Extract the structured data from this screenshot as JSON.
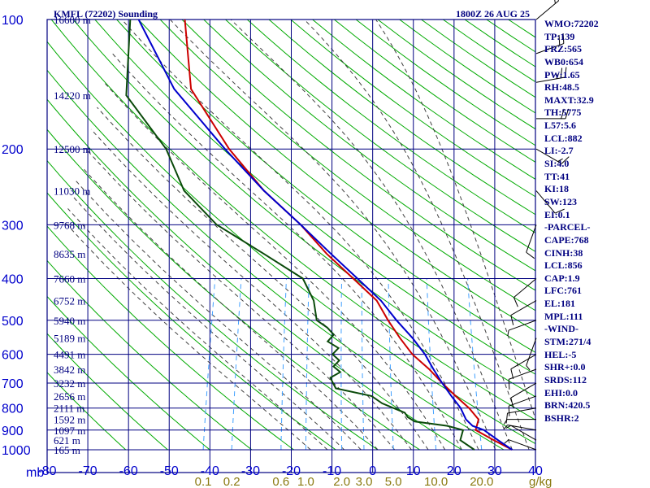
{
  "header": {
    "station": "KMFL (72202) Sounding",
    "time": "1800Z 26 AUG 25"
  },
  "colors": {
    "frame": "#000080",
    "temperature": "#cc0000",
    "dewpoint": "#0a4a0a",
    "parcel": "#0000cc",
    "dry_adiabat": "#00aa00",
    "moist_adiabat": "#404040",
    "mixing_ratio": "#40a0ff",
    "wind": "#000000"
  },
  "indices": [
    "WMO:72202",
    "TP:139",
    "FRZ:565",
    "WB0:654",
    "PW:1.65",
    "RH:48.5",
    "MAXT:32.9",
    "TH:5775",
    "L57:5.6",
    "LCL:882",
    "LI:-2.7",
    "SI:4.0",
    "TT:41",
    "KI:18",
    "SW:123",
    "EI:0.1",
    "-PARCEL-",
    "CAPE:768",
    "CINH:38",
    "LCL:856",
    "CAP:1.9",
    "LFC:761",
    "EL:181",
    "MPL:111",
    "-WIND-",
    "STM:271/4",
    "HEL:-5",
    "SHR+:0.0",
    "SRDS:112",
    "EHI:0.0",
    "BRN:420.5",
    "BSHR:2"
  ],
  "chart_data": {
    "type": "line",
    "subtype": "skew-T log-P",
    "pressure_axis_label": "mb",
    "pressure_levels": [
      100,
      200,
      300,
      400,
      500,
      600,
      700,
      800,
      900,
      1000
    ],
    "pressure_tick_labels": [
      "100",
      "200",
      "300",
      "400",
      "500",
      "600",
      "700",
      "800",
      "900",
      "1000"
    ],
    "temperature_ticks": [
      -80,
      -70,
      -60,
      -50,
      -40,
      -30,
      -20,
      -10,
      0,
      10,
      20,
      30,
      40
    ],
    "temperature_tick_labels": [
      "-80",
      "-70",
      "-60",
      "-50",
      "-40",
      "-30",
      "-20",
      "-10",
      "0",
      "10",
      "20",
      "30",
      "40"
    ],
    "mixing_ratio_label": "g/kg",
    "mixing_ratio_ticks": [
      0.1,
      0.2,
      0.6,
      1.0,
      2.0,
      3.0,
      5.0,
      10.0,
      20.0
    ],
    "mixing_ratio_tick_labels": [
      "0.1",
      "0.2",
      "0.6",
      "1.0",
      "2.0",
      "3.0",
      "5.0",
      "10.0",
      "20.0"
    ],
    "height_labels": [
      {
        "p": 100,
        "text": "16600 m"
      },
      {
        "p": 150,
        "text": "14220 m"
      },
      {
        "p": 200,
        "text": "12500 m"
      },
      {
        "p": 250,
        "text": "11030 m"
      },
      {
        "p": 300,
        "text": "9768 m"
      },
      {
        "p": 350,
        "text": "8635 m"
      },
      {
        "p": 400,
        "text": "7660 m"
      },
      {
        "p": 450,
        "text": "6752 m"
      },
      {
        "p": 500,
        "text": "5940 m"
      },
      {
        "p": 550,
        "text": "5189 m"
      },
      {
        "p": 600,
        "text": "4491 m"
      },
      {
        "p": 650,
        "text": "3842 m"
      },
      {
        "p": 700,
        "text": "3232 m"
      },
      {
        "p": 750,
        "text": "2656 m"
      },
      {
        "p": 800,
        "text": "2111 m"
      },
      {
        "p": 850,
        "text": "1592 m"
      },
      {
        "p": 900,
        "text": "1097 m"
      },
      {
        "p": 950,
        "text": "621 m"
      },
      {
        "p": 1000,
        "text": "165 m"
      }
    ],
    "series": [
      {
        "key": "temperature",
        "points": [
          [
            100,
            -74
          ],
          [
            145,
            -68
          ],
          [
            200,
            -55
          ],
          [
            250,
            -44
          ],
          [
            300,
            -33
          ],
          [
            350,
            -25
          ],
          [
            400,
            -17
          ],
          [
            450,
            -10
          ],
          [
            500,
            -6
          ],
          [
            550,
            -2
          ],
          [
            600,
            2
          ],
          [
            650,
            7
          ],
          [
            700,
            11
          ],
          [
            750,
            15
          ],
          [
            800,
            19
          ],
          [
            850,
            22
          ],
          [
            900,
            22
          ],
          [
            950,
            27
          ],
          [
            1000,
            32
          ]
        ]
      },
      {
        "key": "dewpoint",
        "points": [
          [
            100,
            -87
          ],
          [
            150,
            -83
          ],
          [
            200,
            -70
          ],
          [
            250,
            -63
          ],
          [
            300,
            -53
          ],
          [
            350,
            -40
          ],
          [
            400,
            -29
          ],
          [
            450,
            -25
          ],
          [
            500,
            -23
          ],
          [
            520,
            -20
          ],
          [
            540,
            -18
          ],
          [
            560,
            -19
          ],
          [
            580,
            -16
          ],
          [
            600,
            -17
          ],
          [
            620,
            -15
          ],
          [
            640,
            -16
          ],
          [
            660,
            -14
          ],
          [
            680,
            -16
          ],
          [
            700,
            -15
          ],
          [
            720,
            -14
          ],
          [
            750,
            -5
          ],
          [
            780,
            -2
          ],
          [
            800,
            1
          ],
          [
            820,
            4
          ],
          [
            840,
            5
          ],
          [
            860,
            7
          ],
          [
            880,
            15
          ],
          [
            900,
            19
          ],
          [
            950,
            19
          ],
          [
            1000,
            23
          ]
        ]
      },
      {
        "key": "parcel",
        "points": [
          [
            100,
            -85
          ],
          [
            145,
            -72
          ],
          [
            200,
            -56
          ],
          [
            250,
            -44
          ],
          [
            300,
            -33
          ],
          [
            350,
            -24
          ],
          [
            400,
            -16
          ],
          [
            450,
            -9
          ],
          [
            500,
            -4
          ],
          [
            550,
            1
          ],
          [
            600,
            5
          ],
          [
            650,
            8
          ],
          [
            700,
            11
          ],
          [
            750,
            14
          ],
          [
            800,
            17
          ],
          [
            850,
            19
          ],
          [
            880,
            21
          ],
          [
            900,
            24
          ],
          [
            950,
            28
          ],
          [
            1000,
            32
          ]
        ]
      }
    ],
    "wind_barbs": [
      {
        "p": 100,
        "dir": 50,
        "spd": 15
      },
      {
        "p": 120,
        "dir": 70,
        "spd": 20
      },
      {
        "p": 140,
        "dir": 80,
        "spd": 25
      },
      {
        "p": 170,
        "dir": 90,
        "spd": 20
      },
      {
        "p": 200,
        "dir": 120,
        "spd": 15
      },
      {
        "p": 250,
        "dir": 140,
        "spd": 10
      },
      {
        "p": 300,
        "dir": 200,
        "spd": 10
      },
      {
        "p": 400,
        "dir": 230,
        "spd": 10
      },
      {
        "p": 450,
        "dir": 240,
        "spd": 10
      },
      {
        "p": 500,
        "dir": 250,
        "spd": 5
      },
      {
        "p": 550,
        "dir": 200,
        "spd": 5
      },
      {
        "p": 600,
        "dir": 240,
        "spd": 10
      },
      {
        "p": 650,
        "dir": 250,
        "spd": 10
      },
      {
        "p": 700,
        "dir": 240,
        "spd": 10
      },
      {
        "p": 750,
        "dir": 250,
        "spd": 10
      },
      {
        "p": 800,
        "dir": 260,
        "spd": 10
      },
      {
        "p": 850,
        "dir": 270,
        "spd": 5
      },
      {
        "p": 900,
        "dir": 280,
        "spd": 5
      },
      {
        "p": 950,
        "dir": 300,
        "spd": 5
      },
      {
        "p": 1000,
        "dir": 290,
        "spd": 5
      }
    ]
  }
}
